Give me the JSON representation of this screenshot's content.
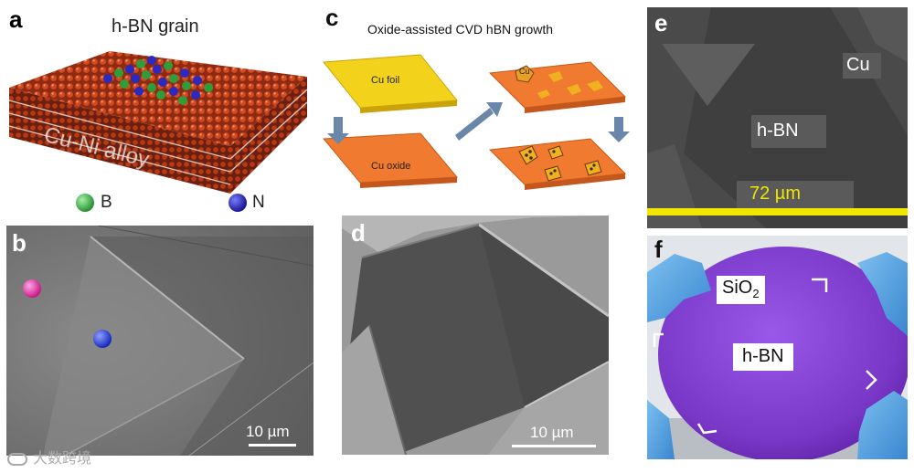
{
  "panel_a": {
    "label": "a",
    "title": "h-BN grain",
    "alloy_text": "Cu-Ni alloy",
    "legend": [
      {
        "symbol": "B",
        "color": "#2e9e3a"
      },
      {
        "symbol": "N",
        "color": "#1a1aa8"
      }
    ]
  },
  "panel_b": {
    "label": "b",
    "scale_bar": "10 µm",
    "marker_colors": [
      "#d81b8c",
      "#1b2fd8"
    ]
  },
  "panel_c": {
    "label": "c",
    "title": "Oxide-assisted CVD hBN growth",
    "cu_foil": "Cu foil",
    "cu_oxide": "Cu oxide",
    "cu_island": "Cu"
  },
  "panel_d": {
    "label": "d",
    "scale_bar": "10 µm"
  },
  "panel_e": {
    "label": "e",
    "cu_label": "Cu",
    "hbn_label": "h-BN",
    "scale_text": "72 µm",
    "scale_color": "#f2e600"
  },
  "panel_f": {
    "label": "f",
    "sio2_main": "SiO",
    "sio2_sub": "2",
    "hbn_label": "h-BN"
  },
  "watermark": "大数跨境"
}
